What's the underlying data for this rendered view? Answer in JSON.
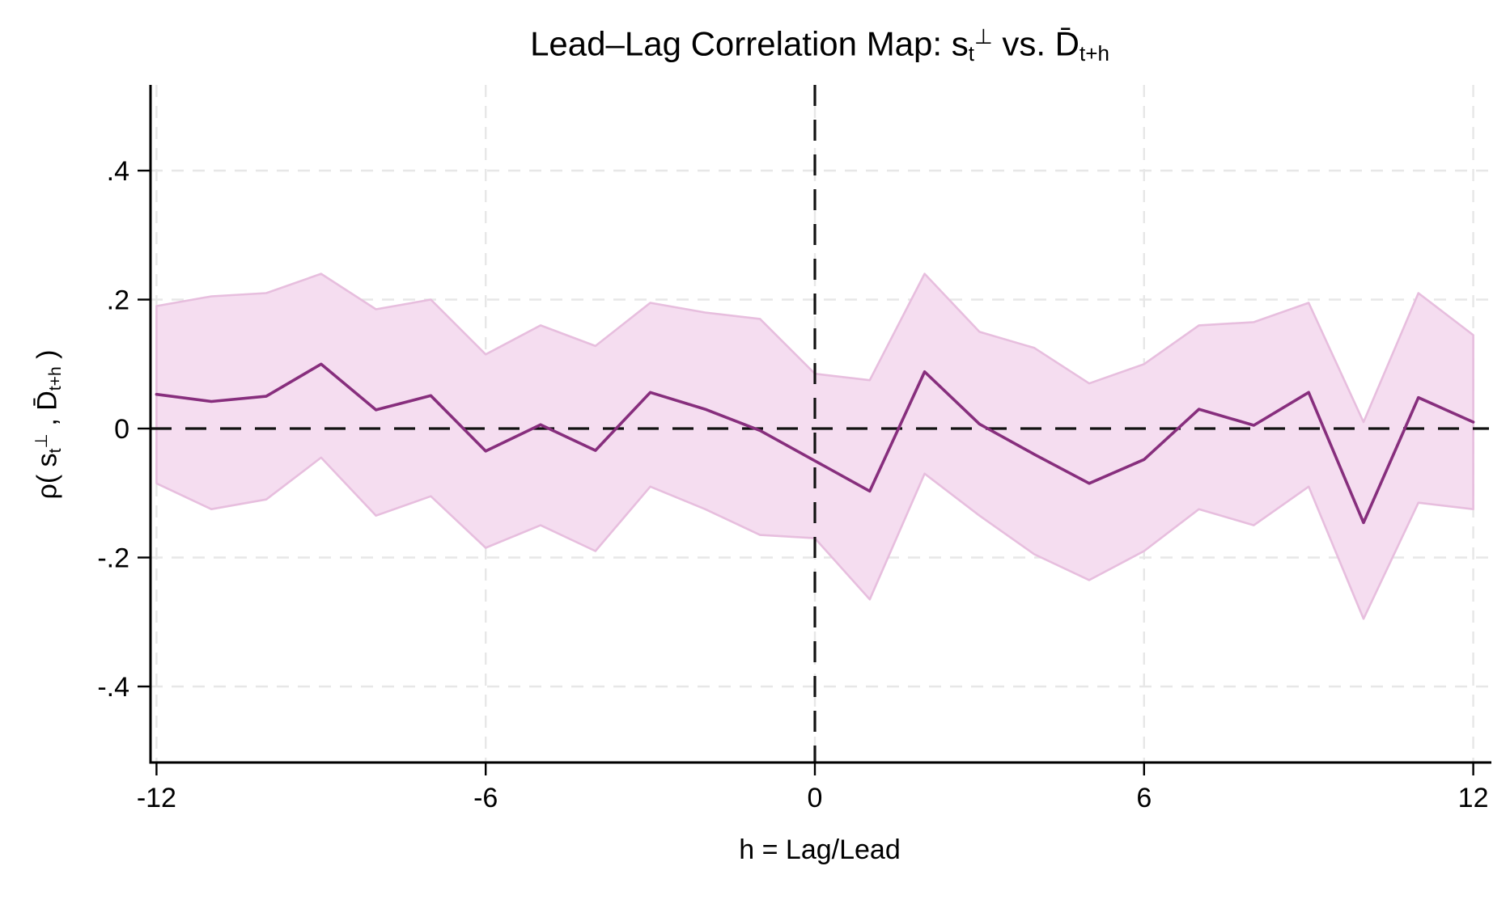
{
  "title": {
    "plain": "Lead–Lag Correlation Map: s_t⊥ vs. D̄_t+h",
    "segments": [
      {
        "t": "Lead–Lag Correlation Map: s",
        "s": "n"
      },
      {
        "t": "t",
        "s": "sub"
      },
      {
        "t": "⊥",
        "s": "sup"
      },
      {
        "t": " vs. D̄",
        "s": "n"
      },
      {
        "t": "t+h",
        "s": "sub"
      }
    ]
  },
  "x_axis": {
    "label": "h = Lag/Lead",
    "ticks": [
      -12,
      -6,
      0,
      6,
      12
    ],
    "tick_labels": [
      "-12",
      "-6",
      "0",
      "6",
      "12"
    ]
  },
  "y_axis": {
    "label_plain": "ρ( s_t⊥ , D̄_t+h )",
    "label_segments": [
      {
        "t": "ρ( s",
        "s": "n"
      },
      {
        "t": "t",
        "s": "sub"
      },
      {
        "t": "⊥",
        "s": "sup"
      },
      {
        "t": " , D̄",
        "s": "n"
      },
      {
        "t": "t+h",
        "s": "sub"
      },
      {
        "t": " )",
        "s": "n"
      }
    ],
    "ticks": [
      0.4,
      0.2,
      0,
      -0.2,
      -0.4
    ],
    "tick_labels": [
      ".4",
      ".2",
      "0",
      "-.2",
      "-.4"
    ]
  },
  "reference_lines": {
    "horizontal_at_rho": 0,
    "vertical_at_h": 0,
    "style": "black dashed"
  },
  "colors": {
    "line": "#872e7d",
    "band_fill": "#f5ddf0",
    "band_edge": "#e7bede",
    "grid": "#e7e7e7",
    "axis": "#000000",
    "reference": "#111111",
    "background": "#ffffff"
  },
  "chart_data": {
    "type": "line",
    "title": "Lead–Lag Correlation Map: s_t⊥ vs. D̄_t+h",
    "xlabel": "h = Lag/Lead",
    "ylabel": "ρ( s_t⊥ , D̄_t+h )",
    "x": [
      -12,
      -11,
      -10,
      -9,
      -8,
      -7,
      -6,
      -5,
      -4,
      -3,
      -2,
      -1,
      0,
      1,
      2,
      3,
      4,
      5,
      6,
      7,
      8,
      9,
      10,
      11,
      12
    ],
    "series": [
      {
        "name": "correlation",
        "values": [
          0.053,
          0.042,
          0.05,
          0.1,
          0.029,
          0.051,
          -0.035,
          0.006,
          -0.034,
          0.056,
          0.03,
          -0.003,
          -0.05,
          -0.097,
          0.088,
          0.007,
          -0.04,
          -0.085,
          -0.048,
          0.03,
          0.005,
          0.056,
          -0.146,
          0.048,
          0.01
        ]
      },
      {
        "name": "ci_upper",
        "values": [
          0.19,
          0.205,
          0.21,
          0.24,
          0.185,
          0.2,
          0.115,
          0.16,
          0.128,
          0.195,
          0.18,
          0.17,
          0.085,
          0.075,
          0.24,
          0.15,
          0.125,
          0.07,
          0.1,
          0.16,
          0.165,
          0.195,
          0.01,
          0.21,
          0.145
        ]
      },
      {
        "name": "ci_lower",
        "values": [
          -0.085,
          -0.125,
          -0.11,
          -0.045,
          -0.135,
          -0.105,
          -0.185,
          -0.15,
          -0.19,
          -0.09,
          -0.125,
          -0.165,
          -0.17,
          -0.265,
          -0.07,
          -0.135,
          -0.195,
          -0.235,
          -0.19,
          -0.125,
          -0.15,
          -0.09,
          -0.295,
          -0.115,
          -0.125
        ]
      }
    ],
    "xlim": [
      -12.1,
      12.3
    ],
    "ylim": [
      -0.525,
      0.535
    ],
    "grid": "dashed light-grey gridlines at all x and y ticks",
    "legend": "none"
  }
}
